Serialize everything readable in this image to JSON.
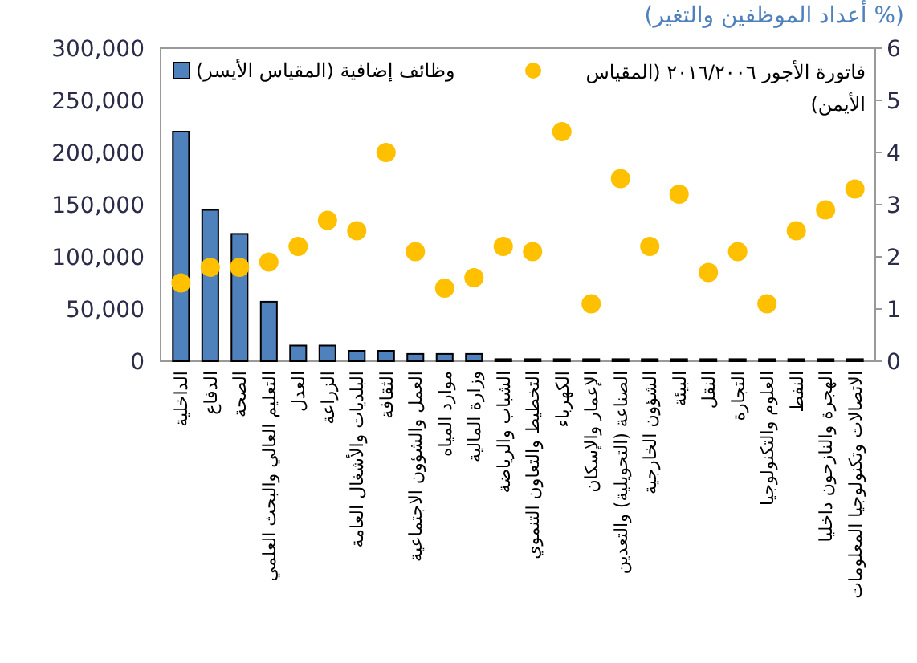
{
  "chart_data": {
    "type": "bar",
    "title": "(أعداد الموظفين والتغير %)",
    "categories": [
      "الداخلية",
      "الدفاع",
      "الصحة",
      "التعليم العالي والبحث العلمي",
      "العدل",
      "الزراعة",
      "البلديات والأشغال العامة",
      "الثقافة",
      "العمل والشؤون الاجتماعية",
      "موارد المياه",
      "وزارة المالية",
      "الشباب والرياضة",
      "التخطيط والتعاون التنموي",
      "الكهرباء",
      "الإعمار والإسكان",
      "الصناعة (التحويلية) والتعدين",
      "الشؤون الخارجية",
      "البيئة",
      "النقل",
      "التجارة",
      "العلوم والتكنولوجيا",
      "النفط",
      "الهجرة والنازحون داخليا",
      "الاتصالات وتكنولوجيا المعلومات"
    ],
    "series": [
      {
        "name": "وظائف إضافية (المقياس الأيسر)",
        "color": "#4f81bd",
        "values": [
          220000,
          145000,
          122000,
          57000,
          15000,
          15000,
          10000,
          10000,
          7000,
          7000,
          7000,
          2000,
          2000,
          2000,
          2000,
          2000,
          2000,
          2000,
          2000,
          2000,
          2000,
          2000,
          2000,
          2000
        ]
      },
      {
        "name": "فاتورة الأجور ٢٠١٦/٢٠٠٦ (المقياس الأيمن)",
        "type": "scatter",
        "axis": "y2",
        "color": "#ffc000",
        "values": [
          1.5,
          1.8,
          1.8,
          1.9,
          2.2,
          2.7,
          2.5,
          4.0,
          2.1,
          1.4,
          1.6,
          2.2,
          2.1,
          4.4,
          1.1,
          3.5,
          2.2,
          3.2,
          1.7,
          2.1,
          1.1,
          2.5,
          2.9,
          3.3
        ]
      }
    ],
    "ylim": [
      0,
      300000
    ],
    "yticks": [
      {
        "value": 0,
        "label": "0"
      },
      {
        "value": 50000,
        "label": "50,000"
      },
      {
        "value": 100000,
        "label": "100,000"
      },
      {
        "value": 150000,
        "label": "150,000"
      },
      {
        "value": 200000,
        "label": "200,000"
      },
      {
        "value": 250000,
        "label": "250,000"
      },
      {
        "value": 300000,
        "label": "300,000"
      }
    ],
    "y2lim": [
      0,
      6
    ],
    "y2ticks": [
      0,
      1,
      2,
      3,
      4,
      5,
      6
    ],
    "marker": "circle",
    "legend": "top left",
    "grid": false
  }
}
